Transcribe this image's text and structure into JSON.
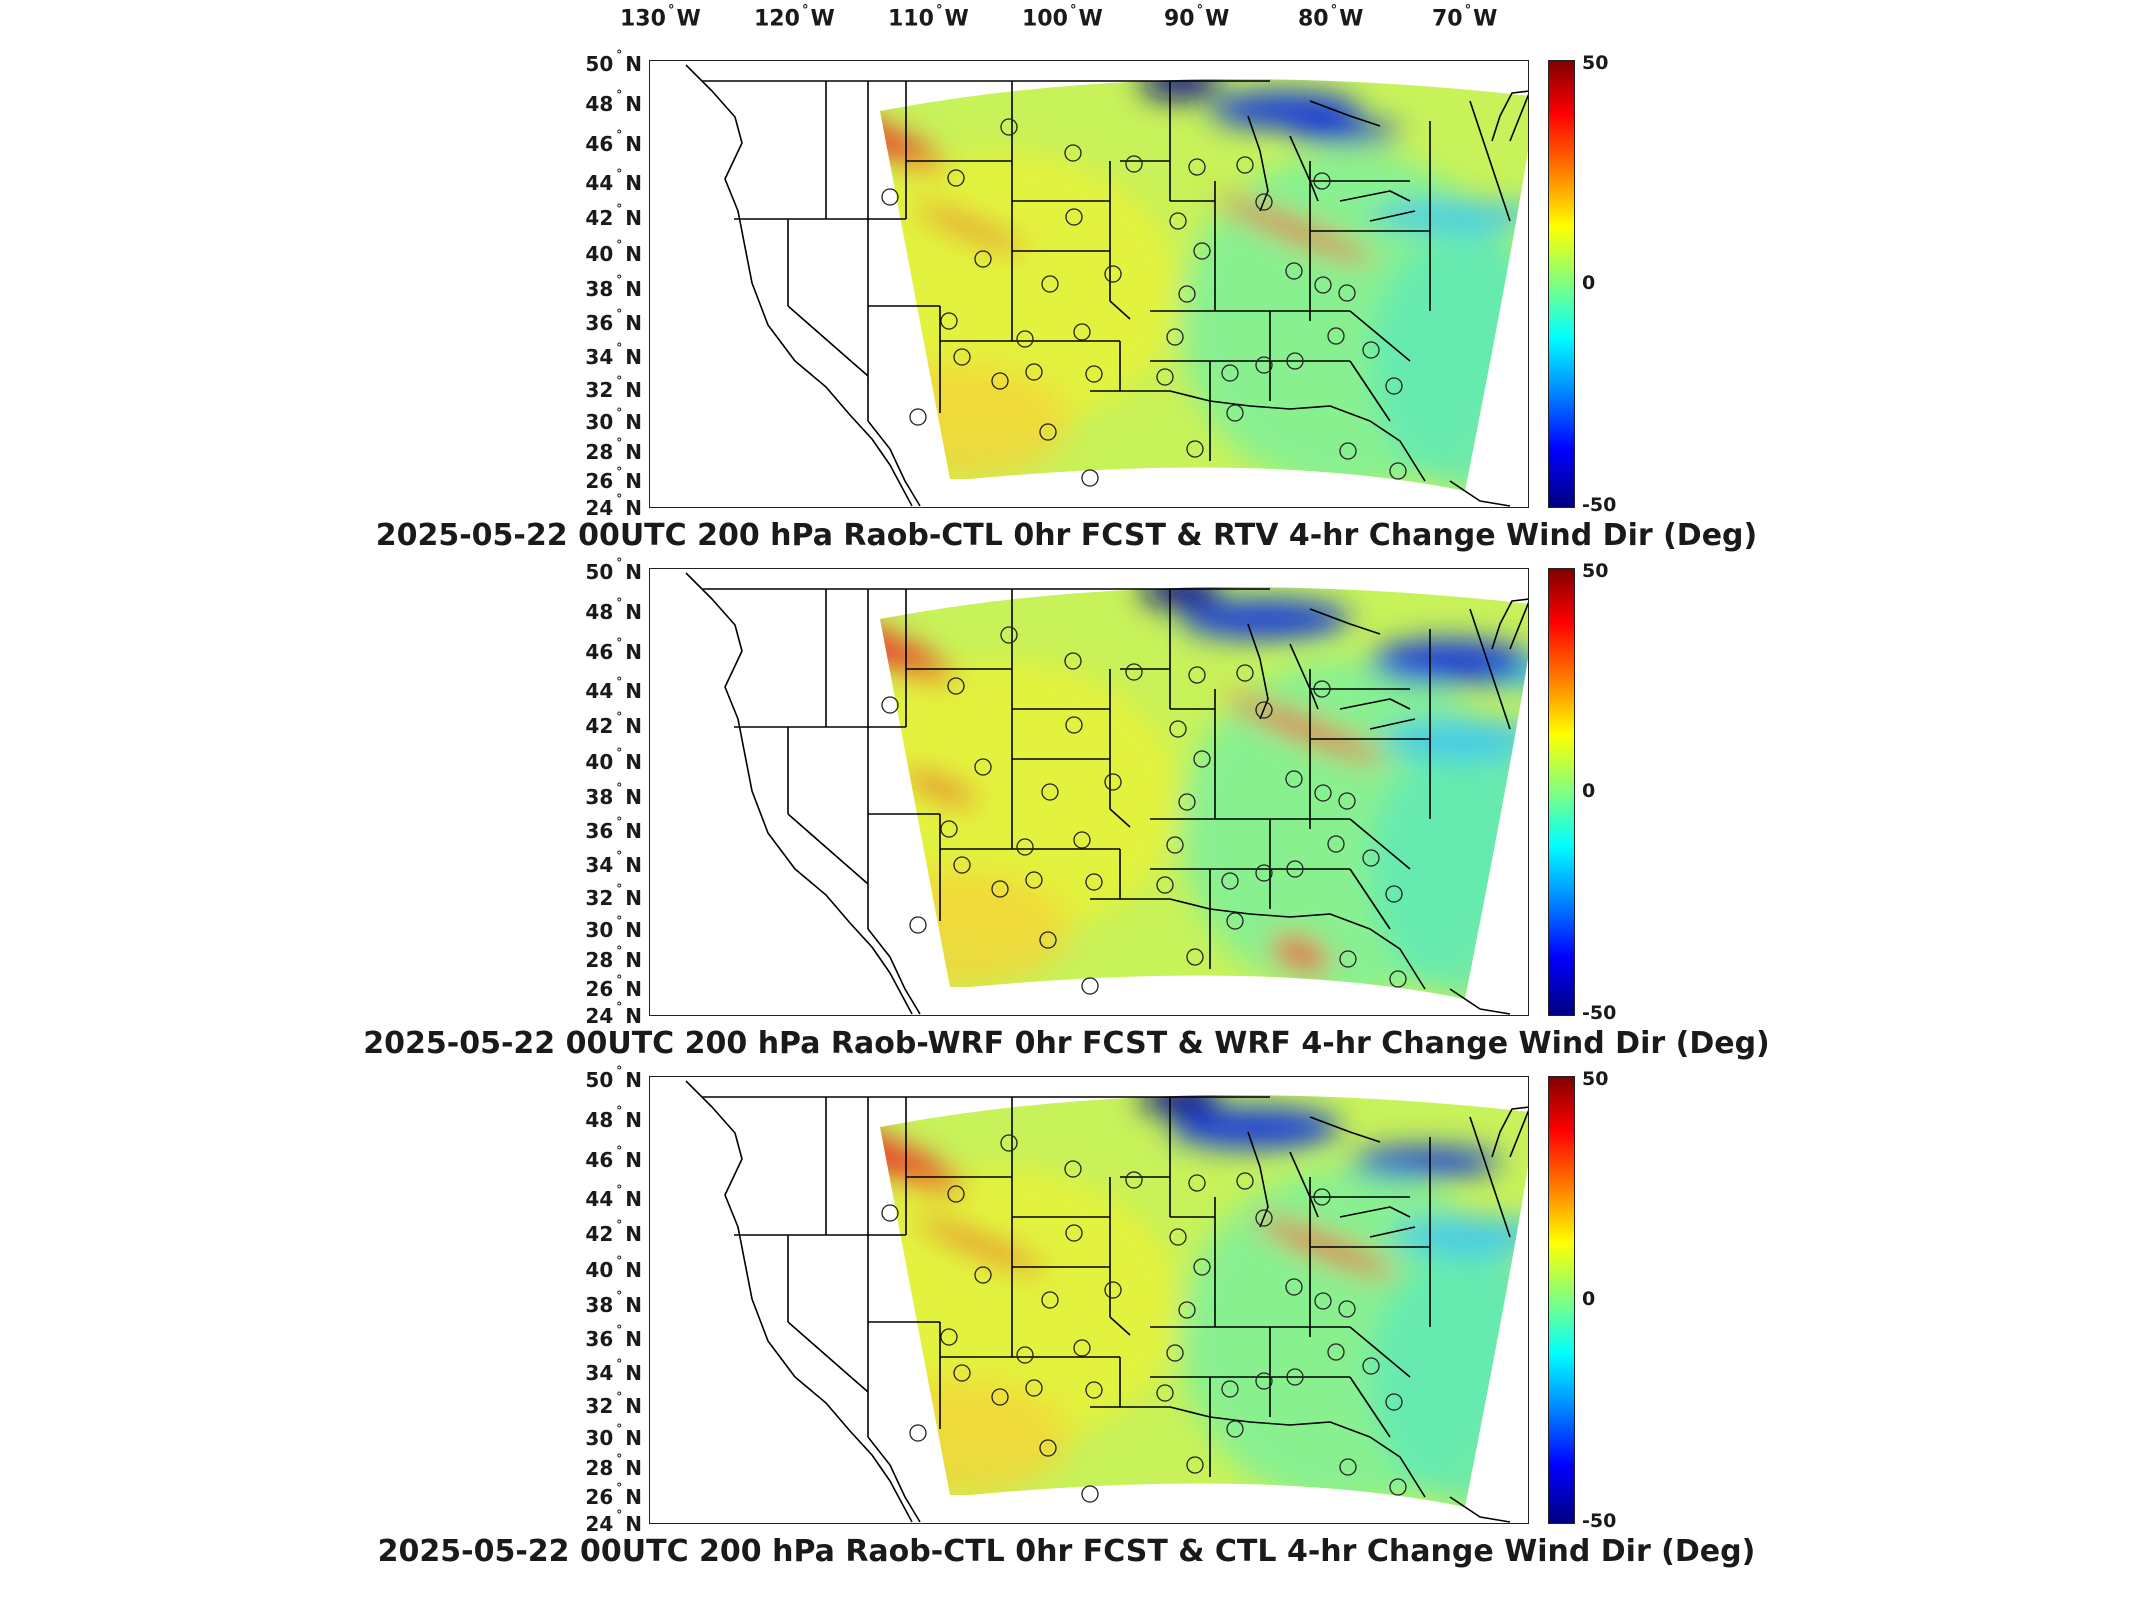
{
  "lon_labels": [
    {
      "deg": "130",
      "dir": "W"
    },
    {
      "deg": "120",
      "dir": "W"
    },
    {
      "deg": "110",
      "dir": "W"
    },
    {
      "deg": "100",
      "dir": "W"
    },
    {
      "deg": "90",
      "dir": "W"
    },
    {
      "deg": "80",
      "dir": "W"
    },
    {
      "deg": "70",
      "dir": "W"
    }
  ],
  "lat_labels": [
    {
      "deg": "50",
      "dir": "N"
    },
    {
      "deg": "48",
      "dir": "N"
    },
    {
      "deg": "46",
      "dir": "N"
    },
    {
      "deg": "44",
      "dir": "N"
    },
    {
      "deg": "42",
      "dir": "N"
    },
    {
      "deg": "40",
      "dir": "N"
    },
    {
      "deg": "38",
      "dir": "N"
    },
    {
      "deg": "36",
      "dir": "N"
    },
    {
      "deg": "34",
      "dir": "N"
    },
    {
      "deg": "32",
      "dir": "N"
    },
    {
      "deg": "30",
      "dir": "N"
    },
    {
      "deg": "28",
      "dir": "N"
    },
    {
      "deg": "26",
      "dir": "N"
    },
    {
      "deg": "24",
      "dir": "N"
    }
  ],
  "colorbar": {
    "max_label": "50",
    "mid_label": "0",
    "min_label": "-50",
    "colors": [
      "#800000",
      "#ff0000",
      "#ff8000",
      "#ffff00",
      "#80ff80",
      "#00ffff",
      "#0080ff",
      "#0000ff",
      "#000080"
    ]
  },
  "panels": [
    {
      "title": "2025-05-22 00UTC 200 hPa Raob-CTL 0hr FCST & RTV 4-hr Change Wind Dir (Deg)"
    },
    {
      "title": "2025-05-22 00UTC 200 hPa Raob-WRF 0hr FCST & WRF 4-hr Change Wind Dir (Deg)"
    },
    {
      "title": "2025-05-22 00UTC 200 hPa Raob-CTL 0hr FCST & CTL 4-hr Change Wind Dir (Deg)"
    }
  ]
}
